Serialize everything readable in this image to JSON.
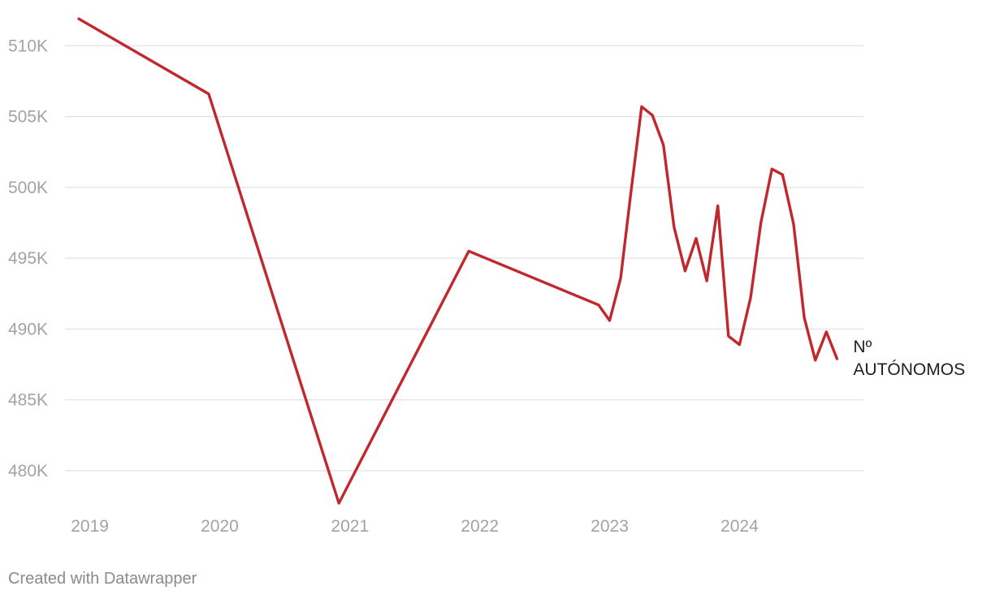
{
  "chart_data": {
    "type": "line",
    "title": "",
    "xlabel": "",
    "ylabel": "",
    "ylim": [
      477500,
      512000
    ],
    "xlim": [
      "2018-12-01",
      "2024-11-01"
    ],
    "y_ticks": [
      {
        "value": 480000,
        "label": "480K"
      },
      {
        "value": 485000,
        "label": "485K"
      },
      {
        "value": 490000,
        "label": "490K"
      },
      {
        "value": 495000,
        "label": "495K"
      },
      {
        "value": 500000,
        "label": "500K"
      },
      {
        "value": 505000,
        "label": "505K"
      },
      {
        "value": 510000,
        "label": "510K"
      }
    ],
    "x_ticks": [
      {
        "value": "2019-01-01",
        "label": "2019"
      },
      {
        "value": "2020-01-01",
        "label": "2020"
      },
      {
        "value": "2021-01-01",
        "label": "2021"
      },
      {
        "value": "2022-01-01",
        "label": "2022"
      },
      {
        "value": "2023-01-01",
        "label": "2023"
      },
      {
        "value": "2024-01-01",
        "label": "2024"
      }
    ],
    "grid": true,
    "legend": "none",
    "series": [
      {
        "label_lines": [
          "Nº",
          "AUTÓNOMOS"
        ],
        "color": "#c0282d",
        "points": [
          {
            "x": "2018-12-01",
            "y": 511900
          },
          {
            "x": "2019-12-01",
            "y": 506600
          },
          {
            "x": "2020-12-01",
            "y": 477700
          },
          {
            "x": "2021-12-01",
            "y": 495500
          },
          {
            "x": "2022-12-01",
            "y": 491700
          },
          {
            "x": "2023-01-01",
            "y": 490600
          },
          {
            "x": "2023-02-01",
            "y": 493600
          },
          {
            "x": "2023-03-01",
            "y": 499500
          },
          {
            "x": "2023-04-01",
            "y": 505700
          },
          {
            "x": "2023-05-01",
            "y": 505100
          },
          {
            "x": "2023-06-01",
            "y": 503000
          },
          {
            "x": "2023-07-01",
            "y": 497200
          },
          {
            "x": "2023-08-01",
            "y": 494100
          },
          {
            "x": "2023-09-01",
            "y": 496400
          },
          {
            "x": "2023-10-01",
            "y": 493400
          },
          {
            "x": "2023-11-01",
            "y": 498700
          },
          {
            "x": "2023-12-01",
            "y": 489500
          },
          {
            "x": "2024-01-01",
            "y": 488900
          },
          {
            "x": "2024-02-01",
            "y": 492200
          },
          {
            "x": "2024-03-01",
            "y": 497500
          },
          {
            "x": "2024-04-01",
            "y": 501300
          },
          {
            "x": "2024-05-01",
            "y": 500900
          },
          {
            "x": "2024-06-01",
            "y": 497400
          },
          {
            "x": "2024-07-01",
            "y": 490800
          },
          {
            "x": "2024-08-01",
            "y": 487800
          },
          {
            "x": "2024-09-01",
            "y": 489800
          },
          {
            "x": "2024-10-01",
            "y": 487900
          }
        ]
      }
    ]
  },
  "footer": {
    "credit": "Created with Datawrapper"
  }
}
